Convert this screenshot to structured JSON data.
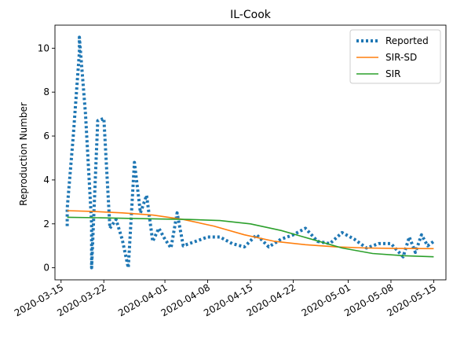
{
  "chart_data": {
    "type": "line",
    "title": "IL-Cook",
    "xlabel": "",
    "ylabel": "Reproduction Number",
    "x_type": "date",
    "xlim": [
      "2020-03-14",
      "2020-05-17"
    ],
    "ylim": [
      -0.55,
      11.05
    ],
    "x_ticks": [
      "2020-03-15",
      "2020-03-22",
      "2020-04-01",
      "2020-04-08",
      "2020-04-15",
      "2020-04-22",
      "2020-05-01",
      "2020-05-08",
      "2020-05-15"
    ],
    "y_ticks": [
      0,
      2,
      4,
      6,
      8,
      10
    ],
    "grid": false,
    "legend": {
      "position": "top-right",
      "entries": [
        "Reported",
        "SIR-SD",
        "SIR"
      ]
    },
    "series": [
      {
        "name": "Reported",
        "color": "#1f77b4",
        "style": "dotted",
        "points": [
          [
            "2020-03-16",
            1.9
          ],
          [
            "2020-03-16",
            2.7
          ],
          [
            "2020-03-17",
            6.0
          ],
          [
            "2020-03-18",
            9.8
          ],
          [
            "2020-03-18",
            10.5
          ],
          [
            "2020-03-19",
            7.0
          ],
          [
            "2020-03-20",
            2.0
          ],
          [
            "2020-03-20",
            0.0
          ],
          [
            "2020-03-21",
            6.7
          ],
          [
            "2020-03-22",
            6.8
          ],
          [
            "2020-03-23",
            1.8
          ],
          [
            "2020-03-24",
            2.2
          ],
          [
            "2020-03-25",
            1.3
          ],
          [
            "2020-03-26",
            0.0
          ],
          [
            "2020-03-27",
            4.8
          ],
          [
            "2020-03-28",
            2.5
          ],
          [
            "2020-03-29",
            3.3
          ],
          [
            "2020-03-30",
            1.2
          ],
          [
            "2020-03-31",
            1.8
          ],
          [
            "2020-04-01",
            1.3
          ],
          [
            "2020-04-02",
            0.9
          ],
          [
            "2020-04-03",
            2.5
          ],
          [
            "2020-04-04",
            1.0
          ],
          [
            "2020-04-06",
            1.2
          ],
          [
            "2020-04-08",
            1.4
          ],
          [
            "2020-04-10",
            1.4
          ],
          [
            "2020-04-12",
            1.1
          ],
          [
            "2020-04-14",
            0.95
          ],
          [
            "2020-04-16",
            1.5
          ],
          [
            "2020-04-18",
            0.95
          ],
          [
            "2020-04-20",
            1.3
          ],
          [
            "2020-04-22",
            1.5
          ],
          [
            "2020-04-24",
            1.8
          ],
          [
            "2020-04-26",
            1.2
          ],
          [
            "2020-04-28",
            1.1
          ],
          [
            "2020-04-30",
            1.6
          ],
          [
            "2020-05-02",
            1.3
          ],
          [
            "2020-05-04",
            0.9
          ],
          [
            "2020-05-06",
            1.1
          ],
          [
            "2020-05-08",
            1.1
          ],
          [
            "2020-05-10",
            0.5
          ],
          [
            "2020-05-11",
            1.4
          ],
          [
            "2020-05-12",
            0.7
          ],
          [
            "2020-05-13",
            1.5
          ],
          [
            "2020-05-14",
            1.0
          ],
          [
            "2020-05-15",
            1.2
          ]
        ]
      },
      {
        "name": "SIR-SD",
        "color": "#ff7f0e",
        "style": "solid",
        "points": [
          [
            "2020-03-16",
            2.6
          ],
          [
            "2020-03-20",
            2.57
          ],
          [
            "2020-03-25",
            2.5
          ],
          [
            "2020-03-30",
            2.4
          ],
          [
            "2020-04-04",
            2.2
          ],
          [
            "2020-04-09",
            1.9
          ],
          [
            "2020-04-14",
            1.5
          ],
          [
            "2020-04-19",
            1.2
          ],
          [
            "2020-04-24",
            1.05
          ],
          [
            "2020-04-29",
            0.95
          ],
          [
            "2020-05-04",
            0.9
          ],
          [
            "2020-05-09",
            0.88
          ],
          [
            "2020-05-15",
            0.87
          ]
        ]
      },
      {
        "name": "SIR",
        "color": "#2ca02c",
        "style": "solid",
        "points": [
          [
            "2020-03-16",
            2.3
          ],
          [
            "2020-03-21",
            2.28
          ],
          [
            "2020-03-26",
            2.25
          ],
          [
            "2020-03-31",
            2.22
          ],
          [
            "2020-04-05",
            2.2
          ],
          [
            "2020-04-10",
            2.15
          ],
          [
            "2020-04-15",
            2.0
          ],
          [
            "2020-04-20",
            1.7
          ],
          [
            "2020-04-25",
            1.3
          ],
          [
            "2020-04-30",
            0.9
          ],
          [
            "2020-05-05",
            0.65
          ],
          [
            "2020-05-10",
            0.55
          ],
          [
            "2020-05-15",
            0.5
          ]
        ]
      }
    ]
  }
}
